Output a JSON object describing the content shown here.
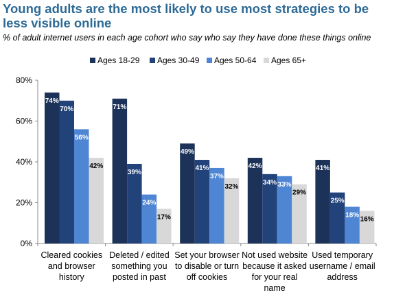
{
  "chart_data": {
    "type": "bar",
    "title": "Young adults are the most likely to use most strategies to be less visible online",
    "subtitle": "% of adult internet users in each age cohort who say who say they have done these things online",
    "categories": [
      [
        "Cleared cookies",
        "and browser",
        "history"
      ],
      [
        "Deleted / edited",
        "something you",
        "posted in past"
      ],
      [
        "Set your browser",
        "to disable or turn",
        "off cookies"
      ],
      [
        "Not used website",
        "because it asked",
        "for your real",
        "name"
      ],
      [
        "Used temporary",
        "username / email",
        "address"
      ]
    ],
    "series": [
      {
        "name": "Ages 18-29",
        "values": [
          74,
          71,
          49,
          42,
          41
        ],
        "color": "#1c3258",
        "label_color": "#ffffff"
      },
      {
        "name": "Ages 30-49",
        "values": [
          70,
          39,
          41,
          34,
          25
        ],
        "color": "#22427a",
        "label_color": "#ffffff"
      },
      {
        "name": "Ages 50-64",
        "values": [
          56,
          24,
          37,
          33,
          18
        ],
        "color": "#4f86d4",
        "label_color": "#ffffff"
      },
      {
        "name": "Ages 65+",
        "values": [
          42,
          17,
          32,
          29,
          16
        ],
        "color": "#d8d8d8",
        "label_color": "#000000"
      }
    ],
    "data_labels": [
      [
        "74%",
        "70%",
        "56%",
        "42%"
      ],
      [
        "71%",
        "39%",
        "24%",
        "17%"
      ],
      [
        "49%",
        "41%",
        "37%",
        "32%"
      ],
      [
        "42%",
        "34%",
        "33%",
        "29%"
      ],
      [
        "41%",
        "25%",
        "18%",
        "16%"
      ]
    ],
    "yticks": [
      "0%",
      "20%",
      "40%",
      "60%",
      "80%"
    ],
    "ylim": [
      0,
      80
    ],
    "xlabel": "",
    "ylabel": "",
    "grid": false,
    "legend_position": "top"
  }
}
